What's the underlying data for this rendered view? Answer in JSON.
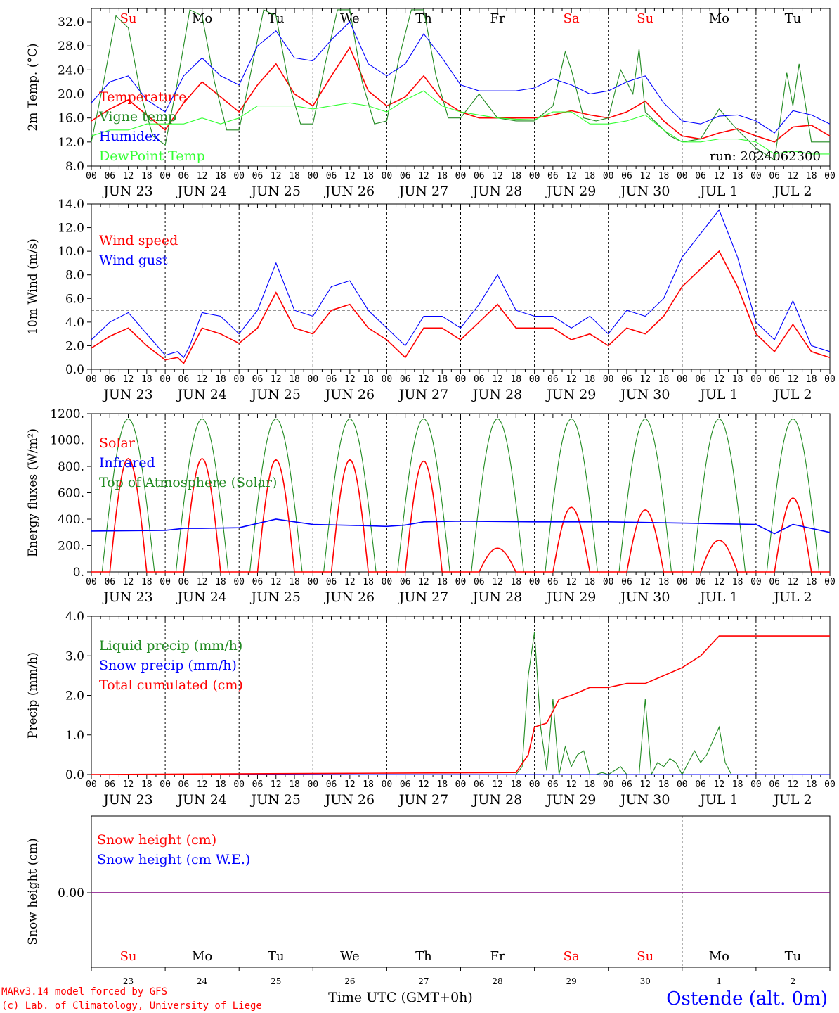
{
  "colors": {
    "red": "#ff0000",
    "darkgreen": "#228b22",
    "blue": "#0000ff",
    "lightgreen": "#33ff33",
    "purple": "#800080",
    "black": "#000000",
    "weekend": "#ff0000"
  },
  "run_label": "run: 2024062300",
  "days": [
    {
      "abbr": "Su",
      "date": "JUN 23",
      "num": "23",
      "weekend": true
    },
    {
      "abbr": "Mo",
      "date": "JUN 24",
      "num": "24",
      "weekend": false
    },
    {
      "abbr": "Tu",
      "date": "JUN 25",
      "num": "25",
      "weekend": false
    },
    {
      "abbr": "We",
      "date": "JUN 26",
      "num": "26",
      "weekend": false
    },
    {
      "abbr": "Th",
      "date": "JUN 27",
      "num": "27",
      "weekend": false
    },
    {
      "abbr": "Fr",
      "date": "JUN 28",
      "num": "28",
      "weekend": false
    },
    {
      "abbr": "Sa",
      "date": "JUN 29",
      "num": "29",
      "weekend": true
    },
    {
      "abbr": "Su",
      "date": "JUN 30",
      "num": "30",
      "weekend": true
    },
    {
      "abbr": "Mo",
      "date": "JUL  1",
      "num": "1",
      "weekend": false
    },
    {
      "abbr": "Tu",
      "date": "JUL  2",
      "num": "2",
      "weekend": false
    }
  ],
  "hour_ticks": [
    "00",
    "06",
    "12",
    "18"
  ],
  "final_tick": "00",
  "footer": {
    "model": "MARv3.14 model forced by GFS",
    "lab": "(c) Lab. of Climatology, University of Liege",
    "xlabel": "Time UTC (GMT+0h)",
    "station": "Ostende (alt. 0m)"
  },
  "chart_data": [
    {
      "type": "line",
      "ylabel": "2m Temp. (°C)",
      "ylim": [
        8,
        34
      ],
      "yticks": [
        "8.0",
        "12.0",
        "16.0",
        "20.0",
        "24.0",
        "28.0",
        "32.0"
      ],
      "yticks_values": [
        8,
        12,
        16,
        20,
        24,
        28,
        32
      ],
      "x_unit": "hours since JUN 23 00 UTC",
      "series": [
        {
          "name": "Temperature",
          "color": "red",
          "x": [
            0,
            6,
            12,
            18,
            24,
            30,
            36,
            42,
            48,
            54,
            60,
            66,
            72,
            78,
            84,
            90,
            96,
            102,
            108,
            114,
            120,
            126,
            132,
            138,
            144,
            150,
            156,
            162,
            168,
            174,
            180,
            186,
            192,
            198,
            204,
            210,
            216,
            222,
            228,
            234,
            240
          ],
          "y": [
            15.5,
            17.5,
            19.0,
            16.5,
            14.0,
            18.5,
            22.0,
            19.5,
            17.0,
            21.5,
            25.0,
            20.0,
            18.0,
            23.0,
            27.7,
            20.5,
            18.0,
            19.5,
            23.0,
            19.0,
            17.0,
            16.0,
            16.0,
            16.0,
            16.0,
            16.5,
            17.2,
            16.5,
            16.0,
            17.0,
            18.8,
            15.5,
            13.0,
            12.5,
            13.5,
            14.2,
            13.0,
            12.0,
            14.5,
            14.8,
            13.0
          ]
        },
        {
          "name": "Vigne temp",
          "color": "darkgreen",
          "x": [
            0,
            4,
            8,
            12,
            16,
            20,
            24,
            28,
            32,
            36,
            40,
            44,
            48,
            52,
            56,
            60,
            64,
            68,
            72,
            76,
            80,
            84,
            88,
            92,
            96,
            100,
            104,
            108,
            112,
            116,
            120,
            126,
            132,
            138,
            144,
            150,
            154,
            156,
            160,
            164,
            168,
            172,
            176,
            178,
            180,
            184,
            188,
            192,
            198,
            204,
            210,
            216,
            222,
            224,
            226,
            228,
            230,
            234,
            240
          ],
          "y": [
            12.0,
            22.0,
            33.0,
            31.0,
            20.0,
            13.0,
            11.5,
            22.0,
            34.0,
            33.0,
            22.0,
            14.0,
            14.0,
            24.0,
            34.0,
            33.0,
            22.0,
            15.0,
            15.0,
            25.0,
            34.0,
            34.0,
            22.0,
            15.0,
            15.5,
            26.0,
            34.0,
            34.0,
            23.0,
            16.0,
            16.0,
            20.0,
            16.0,
            15.5,
            15.5,
            18.0,
            27.0,
            24.0,
            16.0,
            15.5,
            16.0,
            24.0,
            20.0,
            27.5,
            17.0,
            15.0,
            13.0,
            12.0,
            12.5,
            17.5,
            14.0,
            11.0,
            9.0,
            16.0,
            23.5,
            18.0,
            25.0,
            12.0,
            12.0
          ]
        },
        {
          "name": "Humidex",
          "color": "blue",
          "x": [
            0,
            6,
            12,
            18,
            24,
            30,
            36,
            42,
            48,
            54,
            60,
            66,
            72,
            78,
            84,
            90,
            96,
            102,
            108,
            114,
            120,
            126,
            132,
            138,
            144,
            150,
            156,
            162,
            168,
            174,
            180,
            186,
            192,
            198,
            204,
            210,
            216,
            222,
            228,
            234,
            240
          ],
          "y": [
            18.5,
            22.0,
            23.0,
            19.0,
            17.0,
            23.0,
            26.0,
            23.0,
            21.5,
            28.0,
            30.5,
            26.0,
            25.5,
            29.0,
            32.0,
            25.0,
            23.0,
            25.0,
            30.0,
            26.0,
            21.5,
            20.5,
            20.5,
            20.5,
            21.0,
            22.5,
            21.5,
            20.0,
            20.5,
            22.0,
            23.0,
            18.5,
            15.5,
            15.0,
            16.3,
            16.5,
            15.5,
            13.5,
            17.2,
            16.5,
            15.0
          ]
        },
        {
          "name": "DewPoint Temp",
          "color": "lightgreen",
          "x": [
            0,
            6,
            12,
            18,
            24,
            30,
            36,
            42,
            48,
            54,
            60,
            66,
            72,
            78,
            84,
            90,
            96,
            102,
            108,
            114,
            120,
            126,
            132,
            138,
            144,
            150,
            156,
            162,
            168,
            174,
            180,
            186,
            192,
            198,
            204,
            210,
            216,
            222,
            228,
            234,
            240
          ],
          "y": [
            13.0,
            14.0,
            14.0,
            15.0,
            15.0,
            15.0,
            16.0,
            15.0,
            16.0,
            18.0,
            18.0,
            18.0,
            17.5,
            18.0,
            18.5,
            18.0,
            17.0,
            19.0,
            20.5,
            18.0,
            17.0,
            16.5,
            16.0,
            15.8,
            15.7,
            17.0,
            17.0,
            15.0,
            15.0,
            15.5,
            16.5,
            14.0,
            12.0,
            12.0,
            12.5,
            12.5,
            12.0,
            10.0,
            10.5,
            10.0,
            10.0
          ]
        }
      ]
    },
    {
      "type": "line",
      "ylabel": "10m Wind (m/s)",
      "ylim": [
        0,
        14
      ],
      "yticks": [
        "0.0",
        "2.0",
        "4.0",
        "6.0",
        "8.0",
        "10.0",
        "12.0",
        "14.0"
      ],
      "yticks_values": [
        0,
        2,
        4,
        6,
        8,
        10,
        12,
        14
      ],
      "hline": 5,
      "series": [
        {
          "name": "Wind speed",
          "color": "red",
          "x": [
            0,
            6,
            12,
            18,
            24,
            28,
            30,
            32,
            36,
            42,
            48,
            54,
            60,
            66,
            72,
            78,
            84,
            90,
            96,
            102,
            108,
            114,
            120,
            126,
            132,
            138,
            144,
            150,
            156,
            162,
            168,
            174,
            180,
            186,
            192,
            198,
            204,
            210,
            216,
            222,
            228,
            234,
            240
          ],
          "y": [
            1.8,
            2.8,
            3.5,
            2.0,
            0.8,
            1.0,
            0.5,
            1.5,
            3.5,
            3.0,
            2.2,
            3.5,
            6.5,
            3.5,
            3.0,
            5.0,
            5.5,
            3.5,
            2.5,
            1.0,
            3.5,
            3.5,
            2.5,
            4.0,
            5.5,
            3.5,
            3.5,
            3.5,
            2.5,
            3.0,
            2.0,
            3.5,
            3.0,
            4.5,
            7.0,
            8.5,
            10.0,
            7.0,
            3.0,
            1.5,
            3.8,
            1.5,
            1.0
          ]
        },
        {
          "name": "Wind gust",
          "color": "blue",
          "x": [
            0,
            6,
            12,
            18,
            24,
            28,
            30,
            32,
            36,
            42,
            48,
            54,
            60,
            66,
            72,
            78,
            84,
            90,
            96,
            102,
            108,
            114,
            120,
            126,
            132,
            138,
            144,
            150,
            156,
            162,
            168,
            174,
            180,
            186,
            192,
            198,
            204,
            210,
            216,
            222,
            228,
            234,
            240
          ],
          "y": [
            2.5,
            4.0,
            4.8,
            3.0,
            1.2,
            1.5,
            1.0,
            2.0,
            4.8,
            4.5,
            3.0,
            5.0,
            9.0,
            5.0,
            4.5,
            7.0,
            7.5,
            5.0,
            3.5,
            2.0,
            4.5,
            4.5,
            3.5,
            5.5,
            8.0,
            5.0,
            4.5,
            4.5,
            3.5,
            4.5,
            3.0,
            5.0,
            4.5,
            6.0,
            9.5,
            11.5,
            13.5,
            9.5,
            4.0,
            2.5,
            5.8,
            2.0,
            1.5
          ]
        }
      ]
    },
    {
      "type": "line",
      "ylabel": "Energy fluxes (W/m²)",
      "ylim": [
        0,
        1200
      ],
      "yticks": [
        "0.",
        "200.",
        "400.",
        "600.",
        "800.",
        "1000.",
        "1200."
      ],
      "yticks_values": [
        0,
        200,
        400,
        600,
        800,
        1000,
        1200
      ],
      "series": [
        {
          "name": "Solar",
          "color": "red",
          "daily_peak": [
            860,
            860,
            850,
            850,
            840,
            180,
            490,
            470,
            240,
            560
          ]
        },
        {
          "name": "Infrared",
          "color": "blue",
          "x": [
            0,
            24,
            30,
            36,
            48,
            60,
            66,
            72,
            90,
            96,
            102,
            108,
            120,
            144,
            168,
            192,
            216,
            222,
            228,
            240
          ],
          "y": [
            310,
            315,
            330,
            330,
            335,
            400,
            380,
            360,
            350,
            345,
            355,
            380,
            385,
            380,
            380,
            370,
            360,
            290,
            360,
            300
          ]
        },
        {
          "name": "Top of Atmosphere (Solar)",
          "color": "darkgreen",
          "daily_peak": [
            1160,
            1160,
            1160,
            1160,
            1160,
            1160,
            1160,
            1160,
            1160,
            1160
          ]
        }
      ]
    },
    {
      "type": "line",
      "ylabel": "Precip (mm/h)",
      "ylim": [
        0,
        4
      ],
      "yticks": [
        "0.0",
        "1.0",
        "2.0",
        "3.0",
        "4.0"
      ],
      "yticks_values": [
        0,
        1,
        2,
        3,
        4
      ],
      "series": [
        {
          "name": "Liquid precip (mm/h)",
          "color": "darkgreen",
          "x": [
            0,
            138,
            140,
            142,
            144,
            146,
            148,
            150,
            152,
            154,
            156,
            158,
            160,
            162,
            164,
            166,
            168,
            170,
            172,
            174,
            178,
            180,
            182,
            184,
            186,
            188,
            190,
            192,
            196,
            198,
            200,
            204,
            206,
            208,
            210,
            240
          ],
          "y": [
            0,
            0,
            0.2,
            2.5,
            3.6,
            1.2,
            0.1,
            1.9,
            0.0,
            0.7,
            0.2,
            0.5,
            0.6,
            0.0,
            0.0,
            0.05,
            0.0,
            0.1,
            0.2,
            0.0,
            0.0,
            1.9,
            0.0,
            0.3,
            0.2,
            0.4,
            0.3,
            0.0,
            0.6,
            0.3,
            0.5,
            1.2,
            0.3,
            0.0,
            0.0,
            0.0
          ]
        },
        {
          "name": "Snow precip (mm/h)",
          "color": "blue",
          "x": [
            0,
            240
          ],
          "y": [
            0,
            0
          ]
        },
        {
          "name": "Total cumulated (cm)",
          "color": "red",
          "x": [
            0,
            84,
            138,
            142,
            144,
            148,
            152,
            156,
            162,
            168,
            174,
            180,
            186,
            192,
            198,
            204,
            210,
            240
          ],
          "y": [
            0,
            0.03,
            0.05,
            0.5,
            1.2,
            1.3,
            1.9,
            2.0,
            2.2,
            2.2,
            2.3,
            2.3,
            2.5,
            2.7,
            3.0,
            3.5,
            3.5,
            3.5
          ]
        }
      ]
    },
    {
      "type": "line",
      "ylabel": "Snow height (cm)",
      "yticks": [
        "0.00"
      ],
      "yticks_values": [
        0
      ],
      "series": [
        {
          "name": "Snow height (cm)",
          "color": "red",
          "x": [
            0,
            240
          ],
          "y": [
            0,
            0
          ]
        },
        {
          "name": "Snow height (cm W.E.)",
          "color": "blue",
          "x": [
            0,
            240
          ],
          "y": [
            0,
            0
          ]
        }
      ]
    }
  ]
}
